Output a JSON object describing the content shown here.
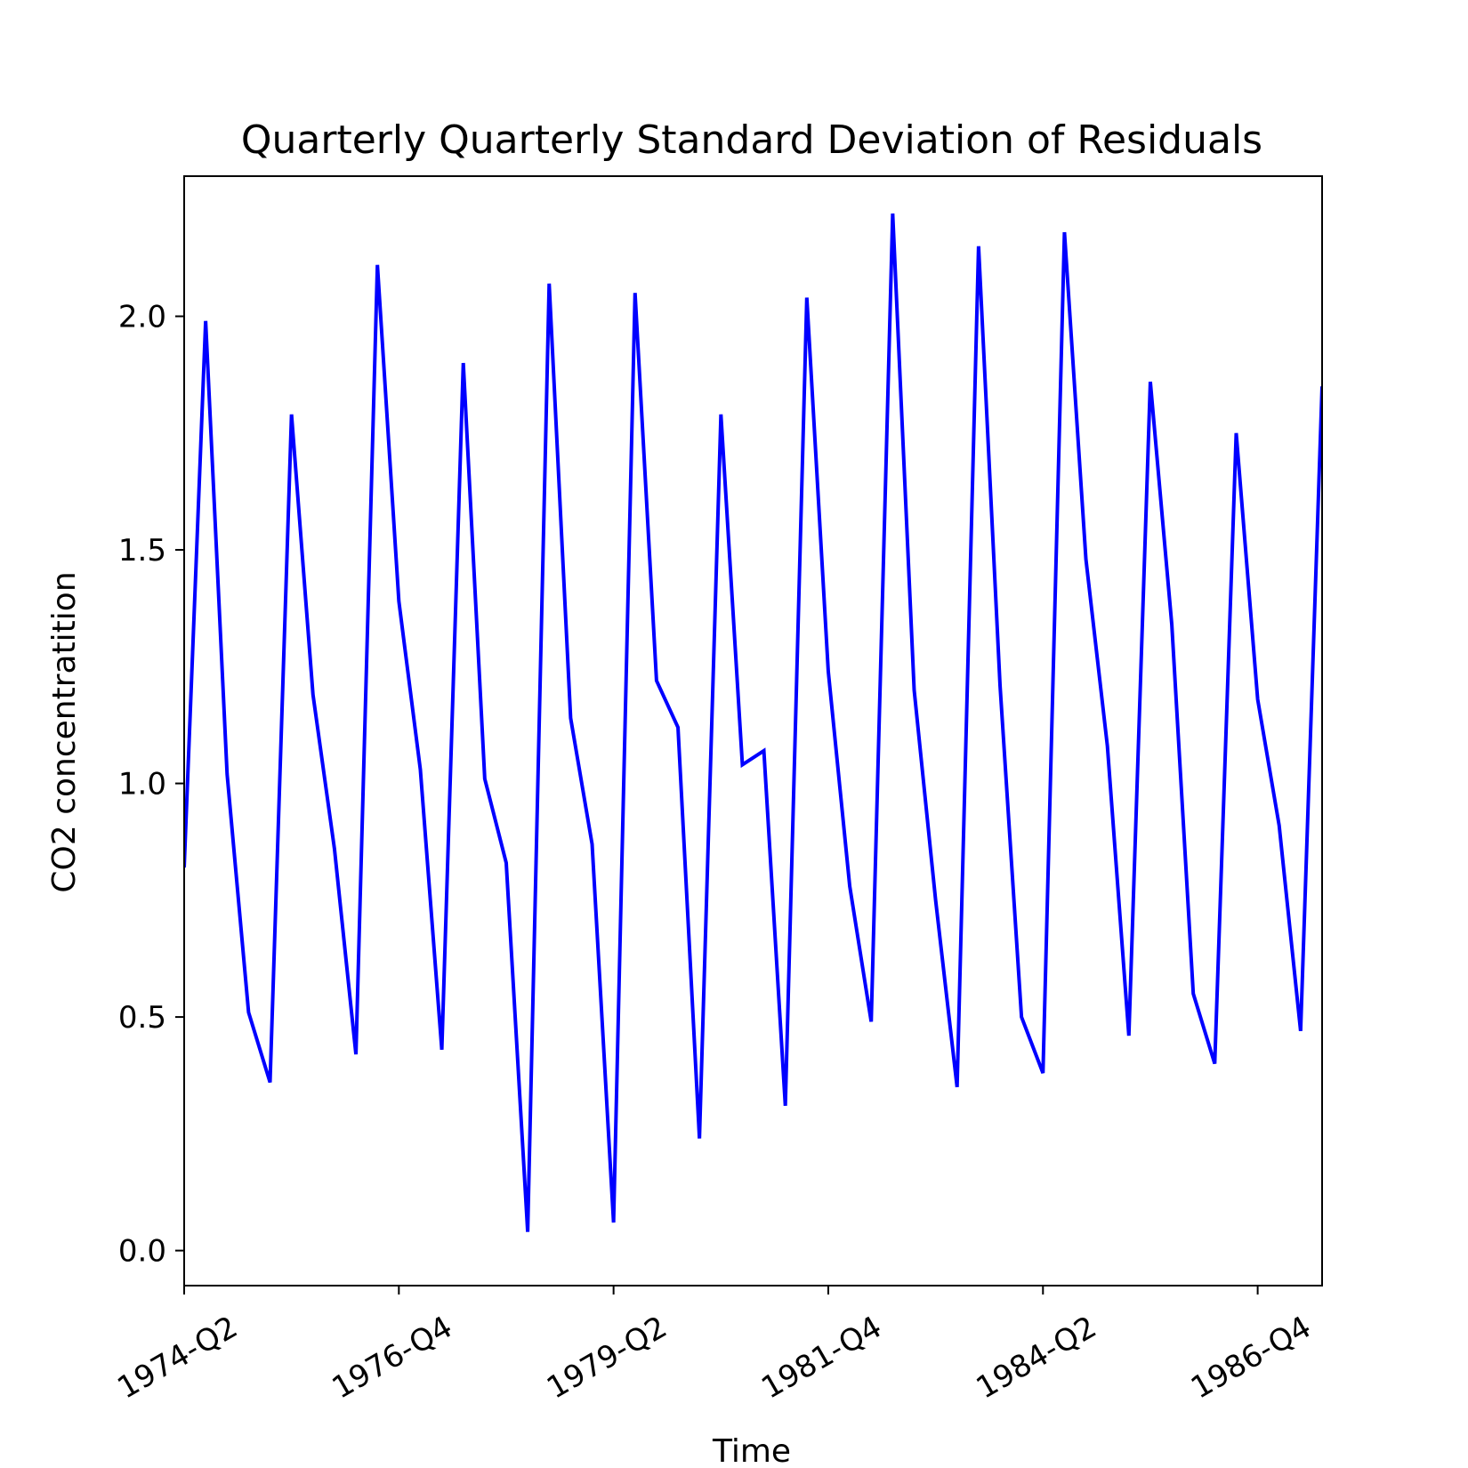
{
  "chart_data": {
    "type": "line",
    "title": "Quarterly Quarterly Standard Deviation of Residuals",
    "xlabel": "Time",
    "ylabel": "CO2 concentratition",
    "ylim": [
      -0.075,
      2.3
    ],
    "y_ticks": [
      "0.0",
      "0.5",
      "1.0",
      "1.5",
      "2.0"
    ],
    "x_tick_labels": [
      "1974-Q2",
      "1976-Q4",
      "1979-Q2",
      "1981-Q4",
      "1984-Q2",
      "1986-Q4"
    ],
    "x_start": "1974-Q2",
    "x_end": "1987-Q3",
    "grid": false,
    "series": [
      {
        "color": "#0000ff",
        "x": [
          "1974-Q2",
          "1974-Q3",
          "1974-Q4",
          "1975-Q1",
          "1975-Q2",
          "1975-Q3",
          "1975-Q4",
          "1976-Q1",
          "1976-Q2",
          "1976-Q3",
          "1976-Q4",
          "1977-Q1",
          "1977-Q2",
          "1977-Q3",
          "1977-Q4",
          "1978-Q1",
          "1978-Q2",
          "1978-Q3",
          "1978-Q4",
          "1979-Q1",
          "1979-Q2",
          "1979-Q3",
          "1979-Q4",
          "1980-Q1",
          "1980-Q2",
          "1980-Q3",
          "1980-Q4",
          "1981-Q1",
          "1981-Q2",
          "1981-Q3",
          "1981-Q4",
          "1982-Q1",
          "1982-Q2",
          "1982-Q3",
          "1982-Q4",
          "1983-Q1",
          "1983-Q2",
          "1983-Q3",
          "1983-Q4",
          "1984-Q1",
          "1984-Q2",
          "1984-Q3",
          "1984-Q4",
          "1985-Q1",
          "1985-Q2",
          "1985-Q3",
          "1985-Q4",
          "1986-Q1",
          "1986-Q2",
          "1986-Q3",
          "1986-Q4",
          "1987-Q1",
          "1987-Q2",
          "1987-Q3"
        ],
        "values": [
          0.82,
          1.99,
          1.02,
          0.51,
          0.36,
          1.79,
          1.19,
          0.86,
          0.42,
          2.11,
          1.39,
          1.03,
          0.43,
          1.9,
          1.01,
          0.83,
          0.04,
          2.07,
          1.14,
          0.87,
          0.06,
          2.05,
          1.22,
          1.12,
          0.24,
          1.79,
          1.04,
          1.07,
          0.31,
          2.04,
          1.24,
          0.78,
          0.49,
          2.22,
          1.2,
          0.75,
          0.35,
          2.15,
          1.21,
          0.5,
          0.38,
          2.18,
          1.48,
          1.08,
          0.46,
          1.86,
          1.34,
          0.55,
          0.4,
          1.75,
          1.18,
          0.91,
          0.47,
          1.85
        ]
      }
    ]
  }
}
